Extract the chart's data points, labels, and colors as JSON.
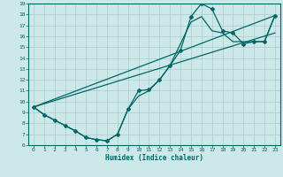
{
  "title": "",
  "xlabel": "Humidex (Indice chaleur)",
  "bg_color": "#cce8e8",
  "grid_color": "#aacccc",
  "line_color": "#006666",
  "xlim": [
    -0.5,
    23.5
  ],
  "ylim": [
    6,
    19
  ],
  "xticks": [
    0,
    1,
    2,
    3,
    4,
    5,
    6,
    7,
    8,
    9,
    10,
    11,
    12,
    13,
    14,
    15,
    16,
    17,
    18,
    19,
    20,
    21,
    22,
    23
  ],
  "yticks": [
    6,
    7,
    8,
    9,
    10,
    11,
    12,
    13,
    14,
    15,
    16,
    17,
    18,
    19
  ],
  "line1_x": [
    0,
    1,
    2,
    3,
    4,
    5,
    6,
    7,
    8,
    9,
    10,
    11,
    12,
    13,
    14,
    15,
    16,
    17,
    18,
    19,
    20,
    21,
    22,
    23
  ],
  "line1_y": [
    9.5,
    8.8,
    8.3,
    7.8,
    7.3,
    6.7,
    6.5,
    6.4,
    7.0,
    9.3,
    11.0,
    11.1,
    12.0,
    13.3,
    14.7,
    17.8,
    19.0,
    18.5,
    16.5,
    16.3,
    15.3,
    15.5,
    15.5,
    17.9
  ],
  "line2_x": [
    0,
    1,
    2,
    3,
    4,
    5,
    6,
    7,
    8,
    9,
    10,
    11,
    12,
    13,
    14,
    15,
    16,
    17,
    18,
    19,
    20,
    21,
    22,
    23
  ],
  "line2_y": [
    9.5,
    8.8,
    8.3,
    7.8,
    7.3,
    6.7,
    6.5,
    6.4,
    7.0,
    9.3,
    10.5,
    11.0,
    12.0,
    13.3,
    15.3,
    17.3,
    17.8,
    16.5,
    16.3,
    15.5,
    15.5,
    15.5,
    15.5,
    17.9
  ],
  "line3_x": [
    0,
    23
  ],
  "line3_y": [
    9.5,
    17.9
  ],
  "line4_x": [
    0,
    23
  ],
  "line4_y": [
    9.5,
    16.3
  ]
}
